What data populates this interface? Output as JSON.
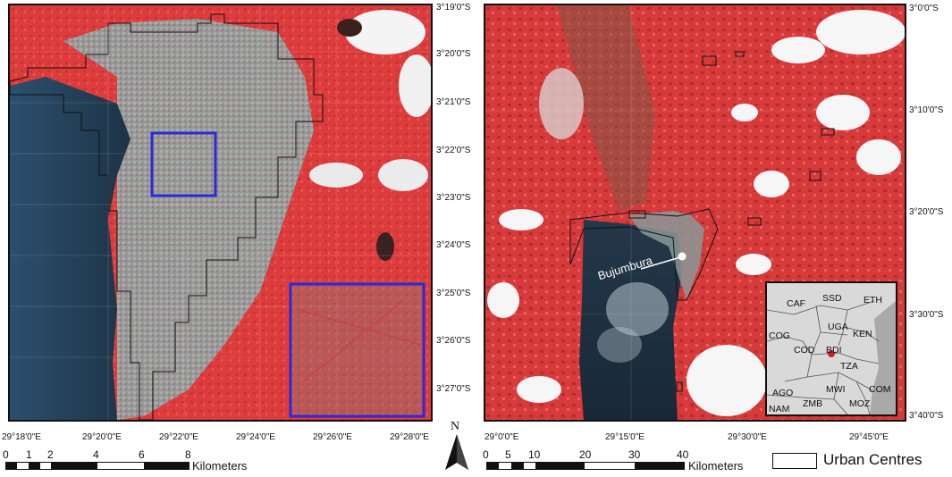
{
  "left_map": {
    "lat_labels": [
      "3°19'0\"S",
      "3°20'0\"S",
      "3°21'0\"S",
      "3°22'0\"S",
      "3°23'0\"S",
      "3°24'0\"S",
      "3°25'0\"S",
      "3°26'0\"S",
      "3°27'0\"S"
    ],
    "lon_labels": [
      "29°18'0\"E",
      "29°20'0\"E",
      "29°22'0\"E",
      "29°24'0\"E",
      "29°26'0\"E",
      "29°28'0\"E"
    ],
    "scale_ticks": [
      "0",
      "1",
      "2",
      "4",
      "6",
      "8"
    ],
    "scale_unit": "Kilometers"
  },
  "right_map": {
    "lat_labels": [
      "3°0'0\"S",
      "3°10'0\"S",
      "3°20'0\"S",
      "3°30'0\"S",
      "3°40'0\"S"
    ],
    "lon_labels": [
      "29°0'0\"E",
      "29°15'0\"E",
      "29°30'0\"E",
      "29°45'0\"E"
    ],
    "city_label": "Bujumbura",
    "scale_ticks": [
      "0",
      "5",
      "10",
      "20",
      "30",
      "40"
    ],
    "scale_unit": "Kilometers"
  },
  "inset": {
    "countries": [
      "CAF",
      "SSD",
      "ETH",
      "UGA",
      "COG",
      "KEN",
      "COD",
      "BDI",
      "TZA",
      "AGO",
      "MWI",
      "COM",
      "NAM",
      "ZMB",
      "MOZ"
    ]
  },
  "north_arrow": {
    "label": "N"
  },
  "legend": {
    "label": "Urban Centres"
  },
  "colors": {
    "vegetation": "#e04040",
    "lake": "#1a2a3a",
    "urban": "#8aa0a0",
    "highlight_box": "#2a2ad8",
    "city_marker": "#ffffff",
    "country_marker": "#cc2222"
  }
}
